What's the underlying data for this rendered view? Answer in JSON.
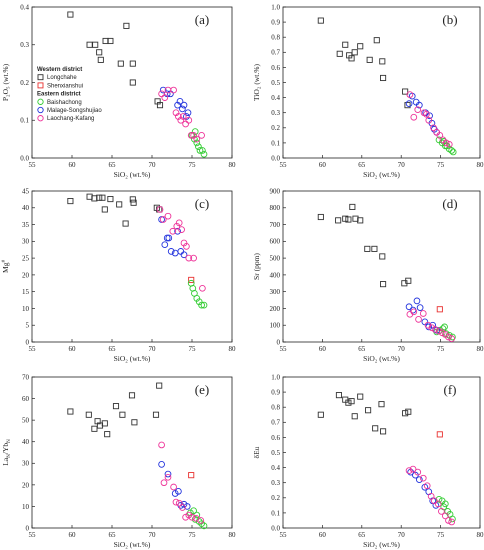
{
  "colors": {
    "Longchahe": "#333333",
    "Shenxianshui": "#e8312f",
    "Baishachong": "#33cc33",
    "Malage-Songshujiao": "#2233dd",
    "Laochang-Kafang": "#ee3399"
  },
  "legend": {
    "western_header": "Western district",
    "eastern_header": "Eastern district",
    "entries": [
      {
        "name": "Longchahe",
        "shape": "square",
        "color": "#333333"
      },
      {
        "name": "Shenxianshui",
        "shape": "square",
        "color": "#e8312f"
      },
      {
        "name": "Baishachong",
        "shape": "circle",
        "color": "#33cc33"
      },
      {
        "name": "Malage-Songshujiao",
        "shape": "circle",
        "color": "#2233dd"
      },
      {
        "name": "Laochang-Kafang",
        "shape": "circle",
        "color": "#ee3399"
      }
    ]
  },
  "chart_data": [
    {
      "type": "scatter",
      "panel_label": "(a)",
      "xlabel": "SiO₂ (wt.%)",
      "ylabel": "P₂O₅ (wt.%)",
      "xlim": [
        55,
        80
      ],
      "ylim": [
        0,
        0.4
      ],
      "xticks": [
        55,
        60,
        65,
        70,
        75,
        80
      ],
      "xtick_labels": [
        "55",
        "60",
        "65",
        "70",
        "75",
        "80"
      ],
      "yticks": [
        0,
        0.1,
        0.2,
        0.3,
        0.4
      ],
      "ytick_labels": [
        "0.0",
        "0.1",
        "0.2",
        "0.3",
        "0.4"
      ],
      "series": [
        {
          "name": "Longchahe",
          "x": [
            59.8,
            62.2,
            62.9,
            63.4,
            63.6,
            64.2,
            64.8,
            66.1,
            66.8,
            67.6,
            67.6,
            70.7,
            71.0
          ],
          "y": [
            0.38,
            0.3,
            0.3,
            0.28,
            0.26,
            0.31,
            0.31,
            0.25,
            0.35,
            0.25,
            0.2,
            0.15,
            0.14
          ]
        },
        {
          "name": "Shenxianshui",
          "x": [],
          "y": []
        },
        {
          "name": "Baishachong",
          "x": [
            75.0,
            75.3,
            75.6,
            75.8,
            76.0,
            76.3,
            76.5,
            75.4
          ],
          "y": [
            0.06,
            0.05,
            0.04,
            0.03,
            0.02,
            0.02,
            0.01,
            0.07
          ]
        },
        {
          "name": "Malage-Songshujiao",
          "x": [
            71.4,
            71.9,
            72.3,
            73.2,
            73.5,
            73.8,
            74.0,
            74.3,
            74.5
          ],
          "y": [
            0.18,
            0.17,
            0.17,
            0.14,
            0.15,
            0.13,
            0.14,
            0.11,
            0.12
          ]
        },
        {
          "name": "Laochang-Kafang",
          "x": [
            71.2,
            71.6,
            72.0,
            72.7,
            73.0,
            73.3,
            73.6,
            73.9,
            74.2,
            74.6,
            74.9,
            75.2,
            75.6,
            76.2
          ],
          "y": [
            0.17,
            0.16,
            0.18,
            0.18,
            0.12,
            0.11,
            0.1,
            0.11,
            0.09,
            0.1,
            0.06,
            0.06,
            0.05,
            0.06
          ]
        }
      ]
    },
    {
      "type": "scatter",
      "panel_label": "(b)",
      "xlabel": "SiO₂ (wt.%)",
      "ylabel": "TiO₂ (wt.%)",
      "xlim": [
        55,
        80
      ],
      "ylim": [
        0,
        1.0
      ],
      "xticks": [
        55,
        60,
        65,
        70,
        75,
        80
      ],
      "xtick_labels": [
        "55",
        "60",
        "65",
        "70",
        "75",
        "80"
      ],
      "yticks": [
        0,
        0.1,
        0.2,
        0.3,
        0.4,
        0.5,
        0.6,
        0.7,
        0.8,
        0.9,
        1.0
      ],
      "ytick_labels": [
        "0.0",
        "0.1",
        "0.2",
        "0.3",
        "0.4",
        "0.5",
        "0.6",
        "0.7",
        "0.8",
        "0.9",
        "1.0"
      ],
      "series": [
        {
          "name": "Longchahe",
          "x": [
            59.8,
            62.2,
            62.9,
            63.4,
            63.7,
            64.1,
            64.8,
            66.0,
            66.9,
            67.6,
            67.7,
            70.5,
            70.8
          ],
          "y": [
            0.91,
            0.69,
            0.75,
            0.68,
            0.66,
            0.7,
            0.74,
            0.65,
            0.78,
            0.64,
            0.53,
            0.44,
            0.35
          ]
        },
        {
          "name": "Shenxianshui",
          "x": [],
          "y": []
        },
        {
          "name": "Baishachong",
          "x": [
            74.8,
            75.2,
            75.6,
            75.8,
            76.1,
            76.4,
            76.6,
            75.4
          ],
          "y": [
            0.12,
            0.1,
            0.08,
            0.08,
            0.06,
            0.05,
            0.04,
            0.11
          ]
        },
        {
          "name": "Malage-Songshujiao",
          "x": [
            71.0,
            71.4,
            71.9,
            72.3,
            73.1,
            73.6,
            73.9,
            74.2,
            74.5
          ],
          "y": [
            0.36,
            0.41,
            0.37,
            0.35,
            0.3,
            0.28,
            0.23,
            0.19,
            0.17
          ]
        },
        {
          "name": "Laochang-Kafang",
          "x": [
            71.1,
            71.6,
            72.1,
            72.9,
            73.2,
            73.5,
            74.1,
            74.5,
            74.9,
            75.3,
            75.7,
            76.1
          ],
          "y": [
            0.42,
            0.27,
            0.32,
            0.3,
            0.29,
            0.25,
            0.2,
            0.17,
            0.15,
            0.12,
            0.1,
            0.09
          ]
        }
      ]
    },
    {
      "type": "scatter",
      "panel_label": "(c)",
      "xlabel": "SiO₂ (wt.%)",
      "ylabel": "Mg#",
      "xlim": [
        55,
        80
      ],
      "ylim": [
        0,
        45
      ],
      "xticks": [
        55,
        60,
        65,
        70,
        75,
        80
      ],
      "xtick_labels": [
        "55",
        "60",
        "65",
        "70",
        "75",
        "80"
      ],
      "yticks": [
        0,
        5,
        10,
        15,
        20,
        25,
        30,
        35,
        40,
        45
      ],
      "ytick_labels": [
        "0",
        "5",
        "10",
        "15",
        "20",
        "25",
        "30",
        "35",
        "40",
        "45"
      ],
      "series": [
        {
          "name": "Longchahe",
          "x": [
            59.8,
            62.2,
            62.8,
            63.4,
            63.8,
            64.1,
            64.8,
            65.9,
            66.7,
            67.6,
            67.7,
            70.6,
            70.9
          ],
          "y": [
            42,
            43.3,
            42.8,
            43,
            43,
            39.5,
            42.6,
            41,
            35.3,
            42.5,
            41.5,
            40,
            39.5
          ]
        },
        {
          "name": "Shenxianshui",
          "x": [
            74.9
          ],
          "y": [
            18.5
          ]
        },
        {
          "name": "Baishachong",
          "x": [
            74.9,
            75.3,
            75.6,
            75.9,
            76.2,
            76.5,
            75.1
          ],
          "y": [
            17.5,
            14.5,
            13,
            12,
            11,
            11,
            16
          ]
        },
        {
          "name": "Malage-Songshujiao",
          "x": [
            71.2,
            71.6,
            71.9,
            72.1,
            72.4,
            72.9,
            73.2,
            73.6,
            74.0
          ],
          "y": [
            36.5,
            29,
            31,
            31,
            27,
            26.5,
            33,
            27,
            26
          ]
        },
        {
          "name": "Laochang-Kafang",
          "x": [
            71.0,
            71.4,
            72.0,
            72.6,
            73.1,
            73.4,
            73.7,
            74.0,
            74.3,
            74.6,
            75.2,
            76.3
          ],
          "y": [
            39.5,
            36.5,
            37.5,
            33,
            34.5,
            35.5,
            33.5,
            29.5,
            28.5,
            25,
            25,
            16
          ]
        }
      ]
    },
    {
      "type": "scatter",
      "panel_label": "(d)",
      "xlabel": "SiO₂ (wt.%)",
      "ylabel": "Sr (ppm)",
      "xlim": [
        55,
        80
      ],
      "ylim": [
        0,
        900
      ],
      "xticks": [
        55,
        60,
        65,
        70,
        75,
        80
      ],
      "xtick_labels": [
        "55",
        "60",
        "65",
        "70",
        "75",
        "80"
      ],
      "yticks": [
        0,
        100,
        200,
        300,
        400,
        500,
        600,
        700,
        800,
        900
      ],
      "ytick_labels": [
        "0",
        "100",
        "200",
        "300",
        "400",
        "500",
        "600",
        "700",
        "800",
        "900"
      ],
      "series": [
        {
          "name": "Longchahe",
          "x": [
            59.8,
            62.0,
            62.9,
            63.3,
            63.8,
            64.2,
            64.8,
            65.7,
            66.6,
            67.6,
            67.7,
            70.4,
            70.9
          ],
          "y": [
            745,
            725,
            735,
            730,
            805,
            735,
            725,
            555,
            555,
            510,
            345,
            350,
            365
          ]
        },
        {
          "name": "Shenxianshui",
          "x": [
            74.9
          ],
          "y": [
            195
          ]
        },
        {
          "name": "Baishachong",
          "x": [
            74.5,
            74.9,
            75.3,
            75.7,
            76.1,
            76.5,
            75.5
          ],
          "y": [
            60,
            70,
            80,
            50,
            40,
            30,
            90
          ]
        },
        {
          "name": "Malage-Songshujiao",
          "x": [
            71.0,
            71.5,
            72.0,
            72.4,
            73.0,
            73.5,
            74.0,
            74.5
          ],
          "y": [
            210,
            190,
            245,
            205,
            120,
            90,
            100,
            70
          ]
        },
        {
          "name": "Laochang-Kafang",
          "x": [
            71.1,
            71.6,
            72.2,
            72.8,
            73.4,
            73.9,
            74.3,
            74.8,
            75.2,
            75.6,
            76.0,
            76.4
          ],
          "y": [
            165,
            180,
            135,
            170,
            100,
            85,
            75,
            65,
            55,
            45,
            30,
            20
          ]
        }
      ]
    },
    {
      "type": "scatter",
      "panel_label": "(e)",
      "xlabel": "SiO₂ (wt.%)",
      "ylabel": "LaN/YbN",
      "xlim": [
        55,
        80
      ],
      "ylim": [
        0,
        70
      ],
      "xticks": [
        55,
        60,
        65,
        70,
        75,
        80
      ],
      "xtick_labels": [
        "55",
        "60",
        "65",
        "70",
        "75",
        "80"
      ],
      "yticks": [
        0,
        10,
        20,
        30,
        40,
        50,
        60,
        70
      ],
      "ytick_labels": [
        "0",
        "10",
        "20",
        "30",
        "40",
        "50",
        "60",
        "70"
      ],
      "series": [
        {
          "name": "Longchahe",
          "x": [
            59.8,
            62.1,
            62.8,
            63.2,
            63.5,
            64.1,
            64.4,
            65.5,
            66.3,
            67.5,
            67.8,
            70.5,
            70.9
          ],
          "y": [
            54,
            52.5,
            46,
            49.5,
            47.5,
            48.5,
            43.5,
            56.5,
            52.5,
            61.5,
            49,
            52.5,
            66
          ]
        },
        {
          "name": "Shenxianshui",
          "x": [
            74.9
          ],
          "y": [
            24.5
          ]
        },
        {
          "name": "Baishachong",
          "x": [
            74.8,
            75.2,
            75.6,
            75.9,
            76.2,
            76.5,
            75.4
          ],
          "y": [
            7,
            8,
            6,
            3,
            2,
            1,
            4
          ]
        },
        {
          "name": "Malage-Songshujiao",
          "x": [
            71.2,
            72.0,
            72.9,
            73.3,
            73.6,
            74.0,
            74.4
          ],
          "y": [
            29.5,
            25,
            16,
            17,
            10.5,
            11,
            10
          ]
        },
        {
          "name": "Laochang-Kafang",
          "x": [
            71.2,
            71.5,
            72.0,
            72.7,
            73.0,
            73.4,
            73.8,
            74.2,
            74.6,
            75.0,
            75.5,
            76.1
          ],
          "y": [
            38.5,
            21,
            23.5,
            19,
            12,
            11.5,
            9.5,
            5,
            6,
            5,
            4.5,
            3.5
          ]
        }
      ]
    },
    {
      "type": "scatter",
      "panel_label": "(f)",
      "xlabel": "SiO₂ (wt.%)",
      "ylabel": "δEu",
      "xlim": [
        55,
        80
      ],
      "ylim": [
        0,
        1.0
      ],
      "xticks": [
        55,
        60,
        65,
        70,
        75,
        80
      ],
      "xtick_labels": [
        "55",
        "60",
        "65",
        "70",
        "75",
        "80"
      ],
      "yticks": [
        0,
        0.1,
        0.2,
        0.3,
        0.4,
        0.5,
        0.6,
        0.7,
        0.8,
        0.9,
        1.0
      ],
      "ytick_labels": [
        "0.0",
        "0.1",
        "0.2",
        "0.3",
        "0.4",
        "0.5",
        "0.6",
        "0.7",
        "0.8",
        "0.9",
        "1.0"
      ],
      "series": [
        {
          "name": "Longchahe",
          "x": [
            59.8,
            62.1,
            62.9,
            63.3,
            63.7,
            64.1,
            64.8,
            65.8,
            66.7,
            67.5,
            67.7,
            70.5,
            70.9
          ],
          "y": [
            0.75,
            0.88,
            0.85,
            0.83,
            0.84,
            0.74,
            0.87,
            0.78,
            0.66,
            0.82,
            0.64,
            0.76,
            0.77
          ]
        },
        {
          "name": "Shenxianshui",
          "x": [
            74.9
          ],
          "y": [
            0.62
          ]
        },
        {
          "name": "Baishachong",
          "x": [
            74.8,
            75.2,
            75.6,
            75.9,
            76.2,
            76.5,
            75.4
          ],
          "y": [
            0.19,
            0.18,
            0.16,
            0.11,
            0.09,
            0.06,
            0.14
          ]
        },
        {
          "name": "Malage-Songshujiao",
          "x": [
            71.2,
            71.8,
            72.3,
            73.0,
            73.5,
            74.0,
            74.4
          ],
          "y": [
            0.37,
            0.35,
            0.32,
            0.27,
            0.24,
            0.18,
            0.15
          ]
        },
        {
          "name": "Laochang-Kafang",
          "x": [
            71.0,
            71.5,
            72.1,
            72.8,
            73.3,
            73.8,
            74.2,
            74.7,
            75.1,
            75.6,
            76.0,
            76.4
          ],
          "y": [
            0.38,
            0.39,
            0.37,
            0.33,
            0.28,
            0.21,
            0.18,
            0.16,
            0.11,
            0.08,
            0.05,
            0.04
          ]
        }
      ]
    }
  ]
}
